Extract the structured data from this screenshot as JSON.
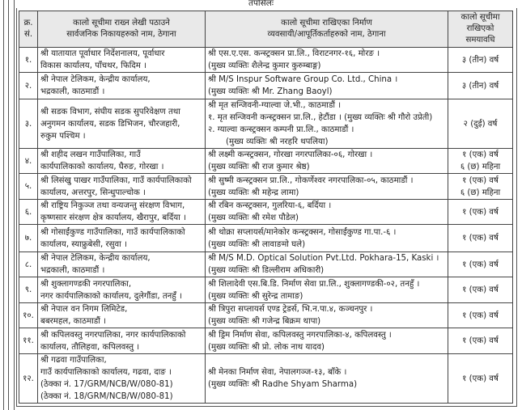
{
  "title": "तपसिलः",
  "headers": {
    "serial": [
      "क्र.",
      "सं."
    ],
    "agency": [
      "कालो सूचीमा राख्न लेखी पठाउने",
      "सार्वजनिक निकायहरुको नाम, ठेगाना"
    ],
    "firm": [
      "कालो सूचीमा राखिएका निर्माण",
      "व्यवसायी/आपूर्तिकर्ताहरुको नाम, ठेगाना"
    ],
    "period": [
      "कालो सूचीमा",
      "राखिएको",
      "समयावधि"
    ]
  },
  "rows": [
    {
      "sn": "१.",
      "agency": [
        "श्री यातायात पूर्वाधार निर्देशनालय, पूर्वाधार",
        "विकास कार्यालय, पाँचथर, फिदिम ।"
      ],
      "firm": [
        "श्री एस.ए.एस. कन्स्ट्रक्सन प्रा.लि., विराटनगर-१६, मोरङ ।",
        "(मुख्य व्यक्तिः शैलेन्द्र कुमार कुरुम्बाङ्ग)"
      ],
      "period": [
        "३ (तीन) वर्ष"
      ]
    },
    {
      "sn": "२.",
      "agency": [
        "श्री नेपाल टेलिकम, केन्द्रीय कार्यालय,",
        "भद्रकाली, काठमाडौं ।"
      ],
      "firm": [
        "श्री M/S Inspur Software Group Co. Ltd., China ।",
        "(मुख्य व्यक्तिः श्री Mr. Zhang Baoyl)"
      ],
      "period": [
        "३ (तीन) वर्ष"
      ]
    },
    {
      "sn": "३.",
      "agency": [
        "श्री सडक विभाग, संघीय सडक सुपरिवेक्षण तथा",
        "अनुगमन कार्यालय, सडक डिभिजन, चौरजहारी,",
        "रुकुम पश्चिम ।"
      ],
      "firm": [
        "श्री मृत सन्जिवनी-ग्याल्वा जे.भी., काठमाडौं ।",
        "१.   मृत सन्जिवनी कन्स्ट्रक्सन प्रा.लि., हेटौंडा । (मुख्य व्यक्तिः श्री गौरो उप्रेती)",
        "२.   ग्याल्वा कन्स्ट्रक्सन कम्पनी प्रा.लि., काठमाडौं ।",
        "(मुख्य व्यक्तिः श्री नरहरि थपलिया)"
      ],
      "period": [
        "२ (दुई) वर्ष"
      ]
    },
    {
      "sn": "४.",
      "agency": [
        "श्री शहीद लखन गाउँपालिका, गाउँ",
        "कार्यपालिकाको कार्यालय, घैरुङ, गोरखा ।"
      ],
      "firm": [
        "श्री लक्ष्मी कन्स्ट्रक्सन, गोरखा नगरपालिका-०६, गोरखा ।",
        "(मुख्य व्यक्तिः श्री राज कुमार श्रेष्ठ)"
      ],
      "period": [
        "१ (एक) वर्ष",
        "६ (छ) महिना"
      ]
    },
    {
      "sn": "५.",
      "agency": [
        "श्री लिसंखु पाखर गाउँपालिका, गाउँ कार्यपालिकाको",
        "कार्यालय, अत्तरपुर, सिन्धुपाल्चोक ।"
      ],
      "firm": [
        "श्री सुष्मी कन्स्ट्रक्सन प्रा.लि., गोकर्णेश्वर नगरपालिका-०५, काठमाडौं ।",
        "(मुख्य व्यक्तिः श्री महेन्द्र लामा)"
      ],
      "period": [
        "१ (एक) वर्ष",
        "६ (छ) महिना"
      ]
    },
    {
      "sn": "६.",
      "agency": [
        "श्री राष्ट्रिय निकुञ्ज तथा वन्यजन्तु संरक्षण विभाग,",
        "कृष्णसार संरक्षण क्षेत्र कार्यालय, खैरापुर, बर्दिया ।"
      ],
      "firm": [
        "श्री रबिन कन्स्ट्रक्सन, गुलरिया-६, बर्दिया ।",
        "(मुख्य व्यक्तिः श्री रमेश पौडेल)"
      ],
      "period": [
        "१ (एक) वर्ष"
      ]
    },
    {
      "sn": "७.",
      "agency": [
        "श्री गोसाईंकुण्ड गाउँपालिका, गाउँ कार्यपालिकाको",
        "कार्यालय, स्याफ्रुबेसी, रसुवा ।"
      ],
      "firm": [
        "श्री थोक्रा सप्लायर्स/मानेकोर कन्स्ट्रक्सन, गोसाईंकुण्ड गा.पा.-६ ।",
        "(मुख्य व्यक्तिः श्री लावाङमो घले)"
      ],
      "period": [
        "१ (एक) वर्ष"
      ]
    },
    {
      "sn": "८.",
      "agency": [
        "श्री नेपाल टेलिकम, केन्द्रीय कार्यालय,",
        "भद्रकाली, काठमाडौं ।"
      ],
      "firm": [
        "श्री M/S M.D. Optical Solution Pvt.Ltd. Pokhara-15, Kaski ।",
        "(मुख्य व्यक्तिः श्री डिल्लीराम अधिकारी)"
      ],
      "period": [
        "१ (एक) वर्ष"
      ]
    },
    {
      "sn": "९.",
      "agency": [
        "श्री शुक्लागण्डकी नगरपालिका,",
        "नगर कार्यपालिकाको कार्यालय, दुलेगौंडा, तनहुँ ।"
      ],
      "firm": [
        "श्री शिलादेवी एस.बि.डि. निर्माण सेवा प्रा.लि., शुक्लागण्डकी-०२, तनहुँ ।",
        "(मुख्य व्यक्तिः श्री सुरेन्द्र तामाङ)"
      ],
      "period": [
        "१ (एक) वर्ष"
      ]
    },
    {
      "sn": "१०.",
      "agency": [
        "श्री नेपाल वन निगम लिमिटेड,",
        "बबरमहल, काठमाडौं ।"
      ],
      "firm": [
        "श्री त्रिपुरा सप्लायर्स एण्ड ट्रेडर्स, भि.न.पा.४, कञ्चनपुर ।",
        "(मुख्य व्यक्तिः श्री गजेन्द्र बिक्रम थापा)"
      ],
      "period": [
        "१ (एक) वर्ष"
      ]
    },
    {
      "sn": "११.",
      "agency": [
        "श्री कपिलवस्तु नगरपालिका, नगर कार्यपालिकाको",
        "कार्यालय, तौलिहवा, कपिलवस्तु ।"
      ],
      "firm": [
        "श्री ड्रिम निर्माण सेवा, कपिलवस्तु नगरपालिका-४, कपिलवस्तु ।",
        "(मुख्य व्यक्तिः श्री प्रो. लोक नाथ यादव)"
      ],
      "period": [
        "१ (एक) वर्ष"
      ]
    },
    {
      "sn": "१२.",
      "agency": [
        "श्री गढवा गाउँपालिका,",
        "गाउँ कार्यपालिकाको कार्यालय, गढवा, दाङ ।",
        "(ठेक्का नं. 17/GRM/NCB/W/080-81)",
        "(ठेक्का नं. 18/GRM/NCB/W/080-81)"
      ],
      "firm": [
        "श्री मेनका निर्माण सेवा, नेपालगञ्ज-१३, बाँके ।",
        "(मुख्य व्यक्तिः श्री Radhe Shyam Sharma)"
      ],
      "period": [
        "१ (एक) वर्ष"
      ]
    }
  ]
}
